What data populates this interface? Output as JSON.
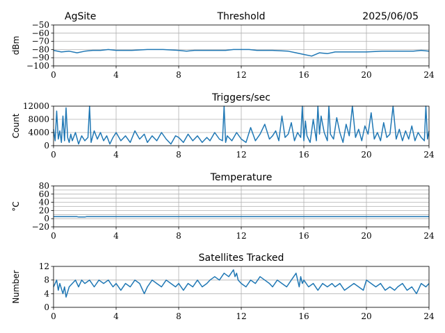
{
  "header": {
    "site": "AgSite",
    "date": "2025/06/05"
  },
  "chart_data": [
    {
      "type": "line",
      "title": "Threshold",
      "ylabel": "dBm",
      "xlim": [
        0,
        24
      ],
      "ylim": [
        -100,
        -50
      ],
      "xticks": [
        0,
        4,
        8,
        12,
        16,
        20,
        24
      ],
      "yticks": [
        -50,
        -60,
        -70,
        -80,
        -90,
        -100
      ],
      "ytick_labels": [
        "−50",
        "−60",
        "−70",
        "−80",
        "−90",
        "−100"
      ],
      "grid": true,
      "color": "#1f77b4",
      "series": [
        {
          "x": [
            0,
            0.5,
            1,
            1.5,
            2,
            2.5,
            3,
            3.5,
            4,
            5,
            6,
            7,
            8,
            8.5,
            9,
            10,
            11,
            11.5,
            12,
            12.5,
            13,
            14,
            15,
            15.5,
            16,
            16.5,
            17,
            17.5,
            18,
            19,
            20,
            21,
            22,
            23,
            23.5,
            24
          ],
          "y": [
            -81,
            -83,
            -82,
            -84,
            -82,
            -81,
            -81,
            -80,
            -81,
            -81,
            -80,
            -80,
            -81,
            -82,
            -81,
            -81,
            -81,
            -80,
            -80,
            -80,
            -81,
            -81,
            -82,
            -84,
            -86,
            -88,
            -84,
            -85,
            -83,
            -83,
            -83,
            -82,
            -82,
            -82,
            -81,
            -82
          ]
        }
      ]
    },
    {
      "type": "line",
      "title": "Triggers/sec",
      "ylabel": "Count",
      "xlim": [
        0,
        24
      ],
      "ylim": [
        0,
        12000
      ],
      "xticks": [
        0,
        4,
        8,
        12,
        16,
        20,
        24
      ],
      "yticks": [
        0,
        4000,
        8000,
        12000
      ],
      "ytick_labels": [
        "0",
        "4000",
        "8000",
        "12000"
      ],
      "grid": true,
      "color": "#1f77b4",
      "series": [
        {
          "x": [
            0,
            0.1,
            0.2,
            0.3,
            0.4,
            0.5,
            0.6,
            0.7,
            0.8,
            0.9,
            1,
            1.1,
            1.2,
            1.4,
            1.6,
            1.8,
            2,
            2.2,
            2.3,
            2.4,
            2.6,
            2.8,
            3,
            3.2,
            3.4,
            3.6,
            3.8,
            4,
            4.3,
            4.6,
            4.9,
            5.2,
            5.5,
            5.8,
            6,
            6.3,
            6.6,
            6.9,
            7.2,
            7.5,
            7.8,
            8,
            8.3,
            8.6,
            8.9,
            9.2,
            9.5,
            9.8,
            10,
            10.3,
            10.6,
            10.8,
            10.9,
            11,
            11.1,
            11.4,
            11.7,
            12,
            12.3,
            12.6,
            12.9,
            13.2,
            13.5,
            13.8,
            14,
            14.2,
            14.4,
            14.6,
            14.8,
            15,
            15.2,
            15.4,
            15.6,
            15.8,
            15.9,
            16,
            16.1,
            16.2,
            16.4,
            16.6,
            16.8,
            16.9,
            17,
            17.1,
            17.3,
            17.5,
            17.6,
            17.7,
            17.9,
            18.1,
            18.3,
            18.5,
            18.7,
            18.9,
            19.1,
            19.3,
            19.5,
            19.7,
            19.9,
            20.1,
            20.3,
            20.5,
            20.7,
            20.9,
            21.1,
            21.3,
            21.5,
            21.7,
            21.9,
            22.1,
            22.3,
            22.5,
            22.7,
            22.9,
            23.1,
            23.3,
            23.5,
            23.7,
            23.8,
            23.9,
            24
          ],
          "y": [
            5000,
            1500,
            10500,
            2000,
            4500,
            1000,
            9000,
            1500,
            11500,
            2500,
            1000,
            3500,
            1500,
            4000,
            500,
            3000,
            1500,
            2500,
            12000,
            1000,
            4500,
            2000,
            4000,
            1500,
            3000,
            500,
            2500,
            4000,
            1500,
            3000,
            1000,
            4500,
            2000,
            3500,
            1000,
            3000,
            1500,
            4000,
            2000,
            500,
            3000,
            2500,
            1000,
            3500,
            1500,
            3000,
            1000,
            2500,
            1500,
            4000,
            2000,
            1500,
            12000,
            1000,
            3000,
            1500,
            4000,
            2000,
            1000,
            5500,
            1500,
            3500,
            6500,
            2000,
            3000,
            4500,
            1500,
            9000,
            2500,
            3500,
            7000,
            1500,
            4000,
            2500,
            12000,
            1500,
            7500,
            3000,
            1000,
            8000,
            1500,
            12000,
            3500,
            9000,
            4000,
            1500,
            12000,
            3500,
            2000,
            8500,
            4000,
            1000,
            6500,
            3000,
            12000,
            2500,
            5000,
            1500,
            6000,
            3500,
            10000,
            2000,
            4000,
            1500,
            7000,
            2500,
            3500,
            12000,
            2000,
            5000,
            1500,
            4500,
            2000,
            6000,
            1500,
            4000,
            2500,
            1500,
            12000,
            2000,
            4500
          ]
        }
      ]
    },
    {
      "type": "line",
      "title": "Temperature",
      "ylabel": "°C",
      "xlim": [
        0,
        24
      ],
      "ylim": [
        -20,
        80
      ],
      "xticks": [
        0,
        4,
        8,
        12,
        16,
        20,
        24
      ],
      "yticks": [
        -20,
        0,
        20,
        40,
        60,
        80
      ],
      "ytick_labels": [
        "−20",
        "0",
        "20",
        "40",
        "60",
        "80"
      ],
      "yticks_minor_grid": [
        10,
        30,
        50,
        70
      ],
      "grid": true,
      "color": "#1f77b4",
      "series": [
        {
          "x": [
            0,
            1.5,
            1.6,
            2,
            2.1,
            24
          ],
          "y": [
            5,
            5,
            4,
            4,
            5,
            5
          ]
        }
      ]
    },
    {
      "type": "line",
      "title": "Satellites Tracked",
      "ylabel": "Number",
      "xlim": [
        0,
        24
      ],
      "ylim": [
        0,
        12
      ],
      "xticks": [
        0,
        4,
        8,
        12,
        16,
        20,
        24
      ],
      "yticks": [
        0,
        4,
        8,
        12
      ],
      "ytick_labels": [
        "0",
        "4",
        "8",
        "12"
      ],
      "grid": true,
      "color": "#1f77b4",
      "series": [
        {
          "x": [
            0,
            0.2,
            0.3,
            0.4,
            0.6,
            0.7,
            0.8,
            1,
            1.2,
            1.4,
            1.6,
            1.8,
            2,
            2.3,
            2.6,
            2.9,
            3.2,
            3.5,
            3.8,
            4,
            4.3,
            4.6,
            4.9,
            5.2,
            5.5,
            5.8,
            6,
            6.3,
            6.6,
            6.9,
            7.2,
            7.5,
            7.8,
            8,
            8.3,
            8.6,
            8.9,
            9.2,
            9.5,
            9.8,
            10,
            10.3,
            10.6,
            10.9,
            11.2,
            11.5,
            11.6,
            11.7,
            11.8,
            12,
            12.3,
            12.6,
            12.9,
            13.2,
            13.5,
            13.8,
            14,
            14.3,
            14.6,
            14.9,
            15.2,
            15.5,
            15.7,
            15.8,
            15.9,
            16,
            16.3,
            16.6,
            16.9,
            17.2,
            17.5,
            17.8,
            18,
            18.3,
            18.6,
            18.9,
            19.2,
            19.5,
            19.8,
            20,
            20.3,
            20.6,
            20.9,
            21.2,
            21.5,
            21.8,
            22,
            22.3,
            22.6,
            22.9,
            23.2,
            23.5,
            23.8,
            24
          ],
          "y": [
            6,
            8,
            5,
            7,
            4,
            6,
            3,
            6,
            7,
            8,
            6,
            8,
            7,
            8,
            6,
            8,
            7,
            8,
            6,
            7,
            5,
            7,
            6,
            8,
            7,
            4,
            6,
            8,
            7,
            6,
            8,
            7,
            6,
            7,
            5,
            7,
            6,
            8,
            6,
            7,
            8,
            9,
            8,
            10,
            9,
            11,
            9,
            10,
            8,
            7,
            6,
            8,
            7,
            9,
            8,
            7,
            6,
            8,
            7,
            6,
            8,
            10,
            6,
            9,
            7,
            8,
            6,
            7,
            5,
            7,
            6,
            7,
            6,
            7,
            5,
            6,
            7,
            6,
            5,
            8,
            7,
            6,
            7,
            5,
            6,
            5,
            6,
            7,
            5,
            6,
            4,
            7,
            6,
            7
          ]
        }
      ]
    }
  ]
}
